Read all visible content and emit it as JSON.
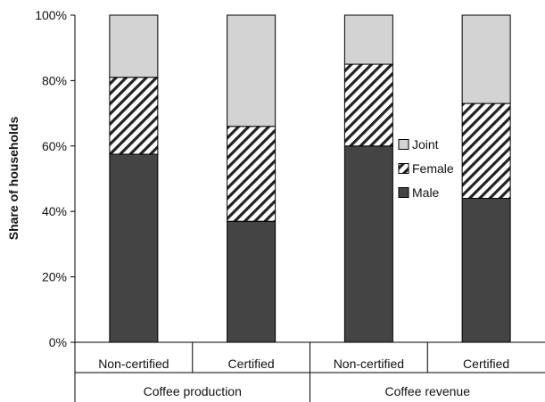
{
  "chart_data": {
    "type": "bar",
    "stacked": true,
    "percent": true,
    "categories": [
      "Non-certified",
      "Certified",
      "Non-certified",
      "Certified"
    ],
    "groups": [
      {
        "label": "Coffee production",
        "categories": [
          0,
          1
        ]
      },
      {
        "label": "Coffee revenue",
        "categories": [
          2,
          3
        ]
      }
    ],
    "series": [
      {
        "name": "Male",
        "values": [
          57.5,
          37,
          60,
          44
        ],
        "color": "#444444",
        "pattern": "solid"
      },
      {
        "name": "Female",
        "values": [
          23.5,
          29,
          25,
          29
        ],
        "color": "#222222",
        "pattern": "diagonal-hatch"
      },
      {
        "name": "Joint",
        "values": [
          19,
          34,
          15,
          27
        ],
        "color": "#d3d3d3",
        "pattern": "solid"
      }
    ],
    "ylabel": "Share of households",
    "xlabel": "",
    "ylim": [
      0,
      100
    ],
    "yticks": [
      "0%",
      "20%",
      "40%",
      "60%",
      "80%",
      "100%"
    ],
    "grid": false,
    "legend_position": "right-center",
    "legend_order": [
      "Joint",
      "Female",
      "Male"
    ]
  }
}
